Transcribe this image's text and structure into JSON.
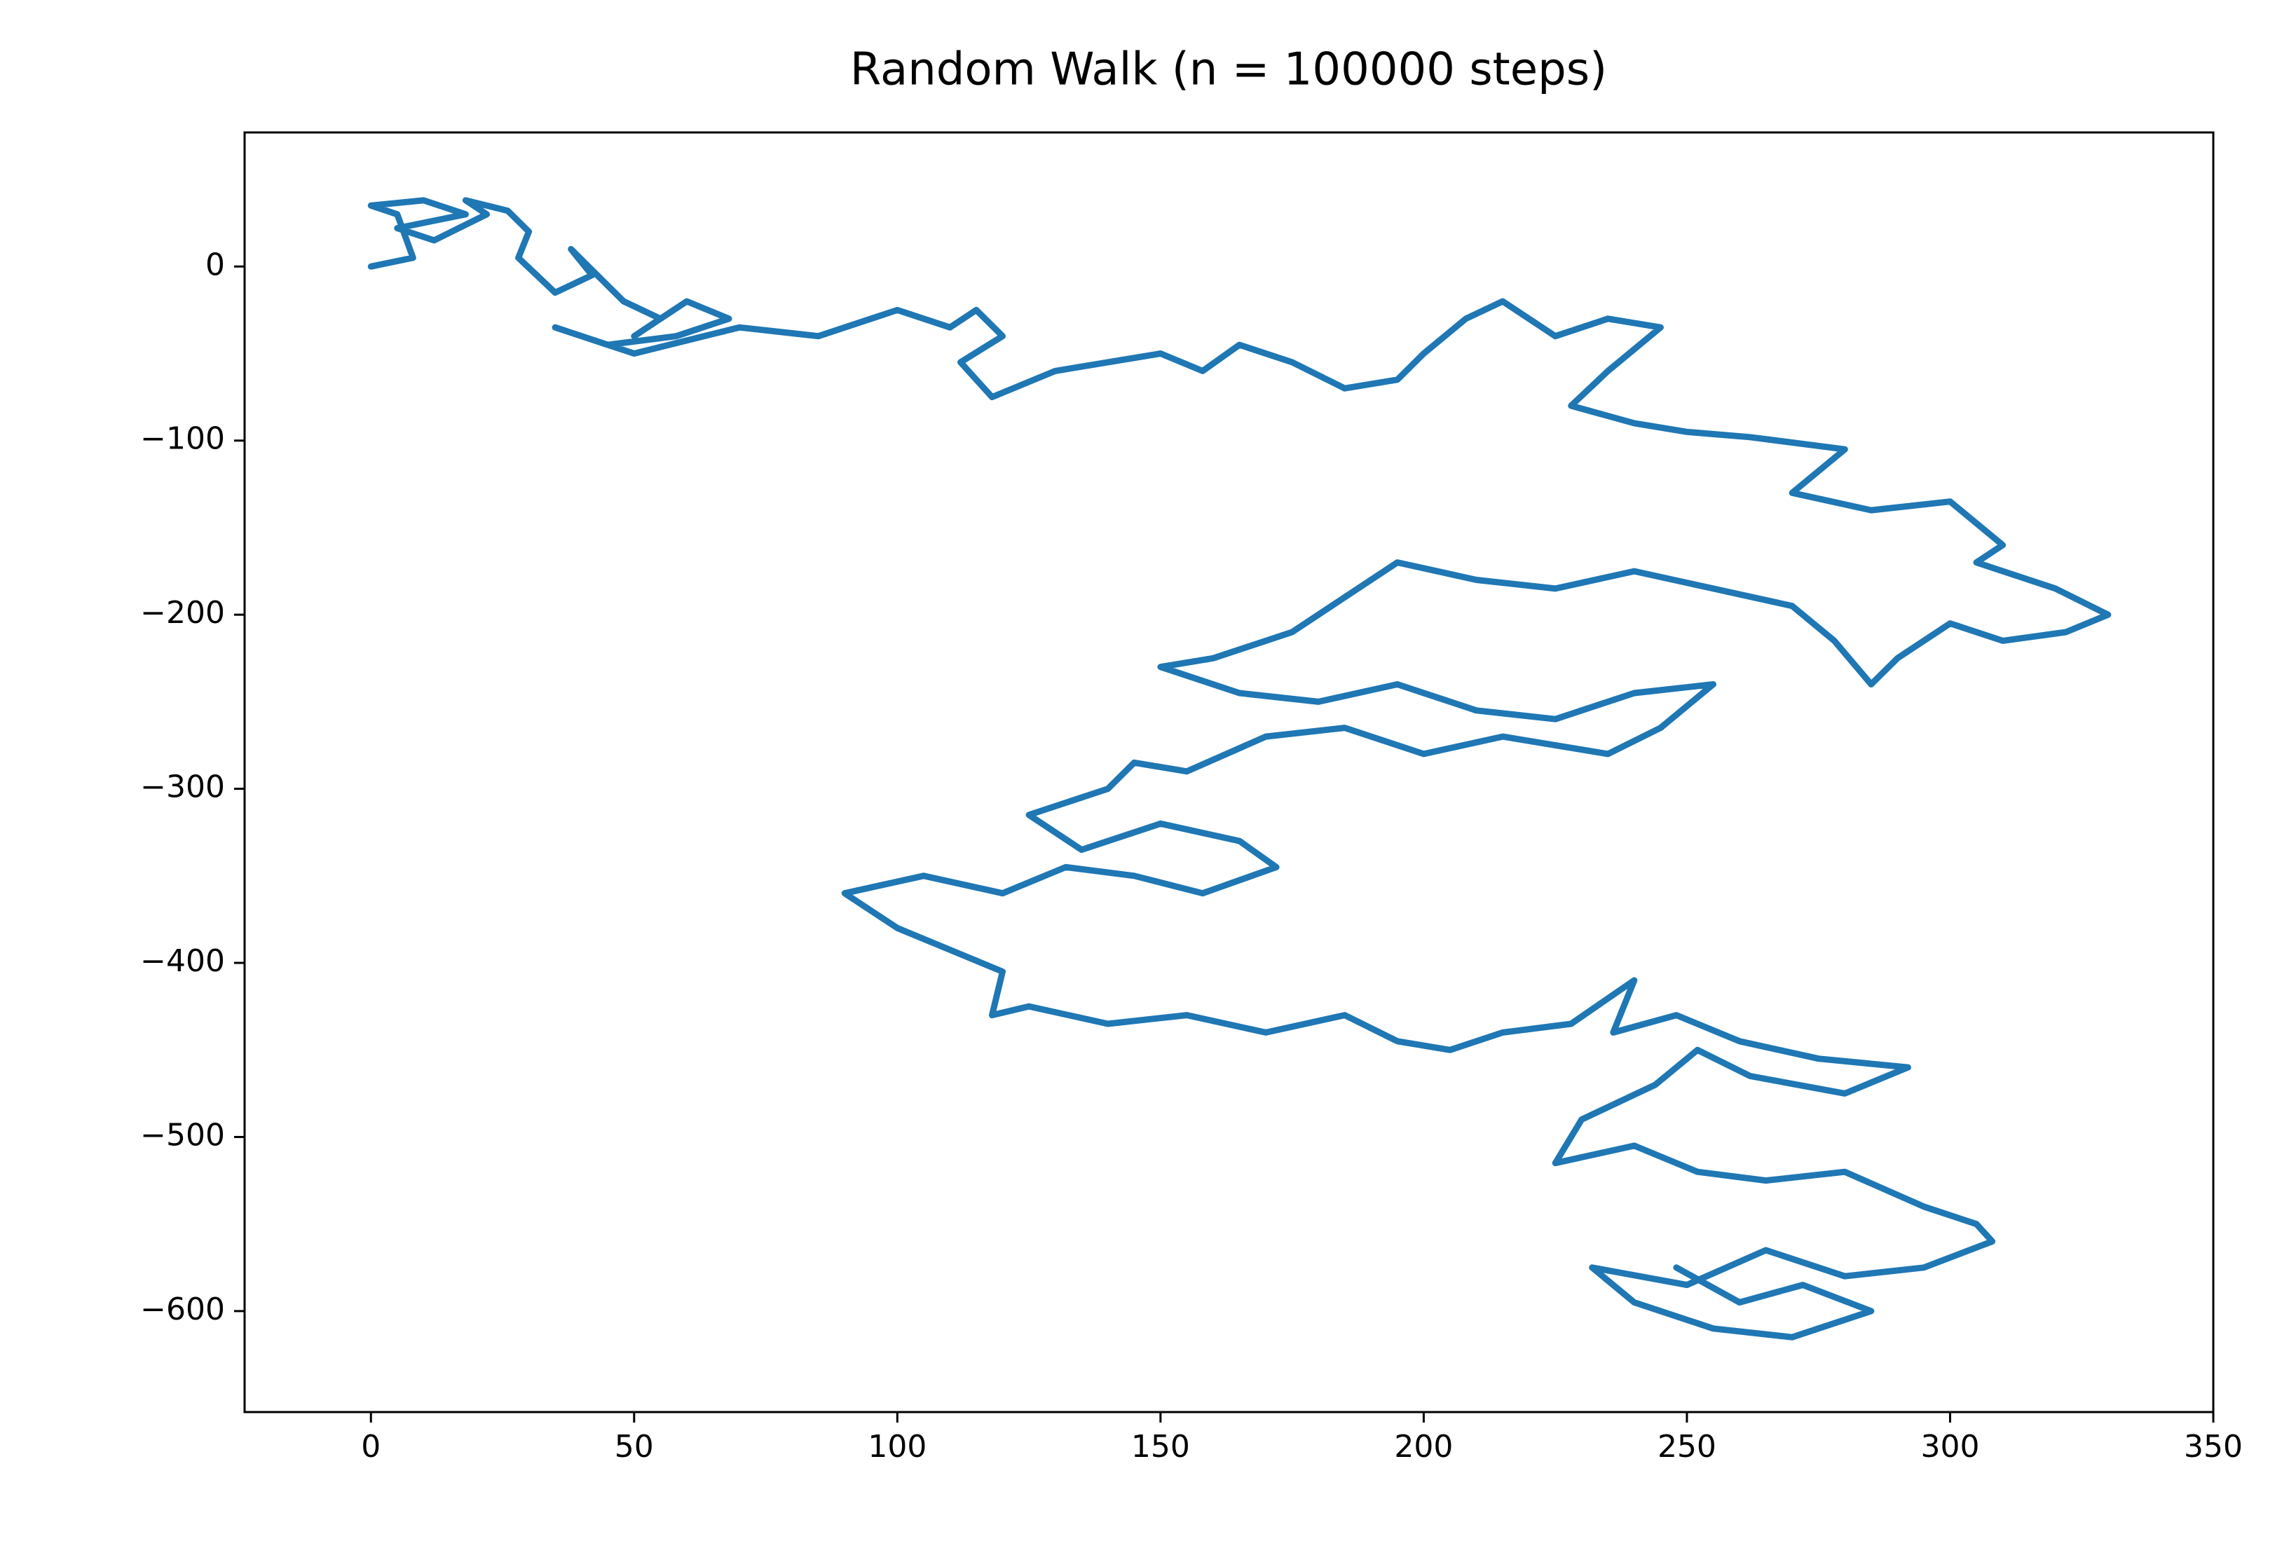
{
  "chart_data": {
    "type": "line",
    "title": "Random Walk (n = 100000 steps)",
    "color": "#1f77b4",
    "xlim": [
      -24,
      350
    ],
    "ylim": [
      -658,
      77
    ],
    "xticks": [
      0,
      50,
      100,
      150,
      200,
      250,
      300,
      350
    ],
    "yticks": [
      {
        "value": -600,
        "label": "−600"
      },
      {
        "value": -500,
        "label": "−500"
      },
      {
        "value": -400,
        "label": "−400"
      },
      {
        "value": -300,
        "label": "−300"
      },
      {
        "value": -200,
        "label": "−200"
      },
      {
        "value": -100,
        "label": "−100"
      },
      0
    ],
    "x": [
      0,
      8,
      5,
      0,
      10,
      18,
      5,
      12,
      22,
      18,
      26,
      30,
      28,
      35,
      42,
      38,
      48,
      55,
      50,
      60,
      68,
      58,
      45,
      35,
      50,
      70,
      85,
      95,
      100,
      110,
      115,
      120,
      112,
      118,
      130,
      140,
      150,
      158,
      165,
      175,
      185,
      195,
      200,
      208,
      215,
      225,
      235,
      245,
      235,
      228,
      240,
      250,
      262,
      280,
      270,
      285,
      300,
      310,
      305,
      320,
      330,
      322,
      310,
      300,
      290,
      285,
      278,
      270,
      255,
      240,
      225,
      210,
      195,
      185,
      175,
      160,
      150,
      165,
      180,
      195,
      210,
      225,
      240,
      255,
      245,
      235,
      215,
      200,
      185,
      170,
      155,
      145,
      140,
      125,
      135,
      150,
      165,
      172,
      158,
      145,
      132,
      120,
      105,
      90,
      100,
      112,
      120,
      118,
      125,
      140,
      155,
      170,
      185,
      195,
      205,
      215,
      228,
      240,
      236,
      248,
      260,
      275,
      292,
      280,
      262,
      252,
      244,
      230,
      225,
      240,
      252,
      265,
      280,
      295,
      305,
      308,
      295,
      280,
      265,
      250,
      232,
      240,
      255,
      270,
      285,
      272,
      260,
      248
    ],
    "values": [
      0,
      5,
      30,
      35,
      38,
      30,
      22,
      15,
      30,
      38,
      32,
      20,
      5,
      -15,
      -5,
      10,
      -20,
      -30,
      -40,
      -20,
      -30,
      -40,
      -45,
      -35,
      -50,
      -35,
      -40,
      -30,
      -25,
      -35,
      -25,
      -40,
      -55,
      -75,
      -60,
      -55,
      -50,
      -60,
      -45,
      -55,
      -70,
      -65,
      -50,
      -30,
      -20,
      -40,
      -30,
      -35,
      -60,
      -80,
      -90,
      -95,
      -98,
      -105,
      -130,
      -140,
      -135,
      -160,
      -170,
      -185,
      -200,
      -210,
      -215,
      -205,
      -225,
      -240,
      -215,
      -195,
      -185,
      -175,
      -185,
      -180,
      -170,
      -190,
      -210,
      -225,
      -230,
      -245,
      -250,
      -240,
      -255,
      -260,
      -245,
      -240,
      -265,
      -280,
      -270,
      -280,
      -265,
      -270,
      -290,
      -285,
      -300,
      -315,
      -335,
      -320,
      -330,
      -345,
      -360,
      -350,
      -345,
      -360,
      -350,
      -360,
      -380,
      -395,
      -405,
      -430,
      -425,
      -435,
      -430,
      -440,
      -430,
      -445,
      -450,
      -440,
      -435,
      -410,
      -440,
      -430,
      -445,
      -455,
      -460,
      -475,
      -465,
      -450,
      -470,
      -490,
      -515,
      -505,
      -520,
      -525,
      -520,
      -540,
      -550,
      -560,
      -575,
      -580,
      -565,
      -585,
      -575,
      -595,
      -610,
      -615,
      -600,
      -585,
      -595,
      -575
    ]
  }
}
